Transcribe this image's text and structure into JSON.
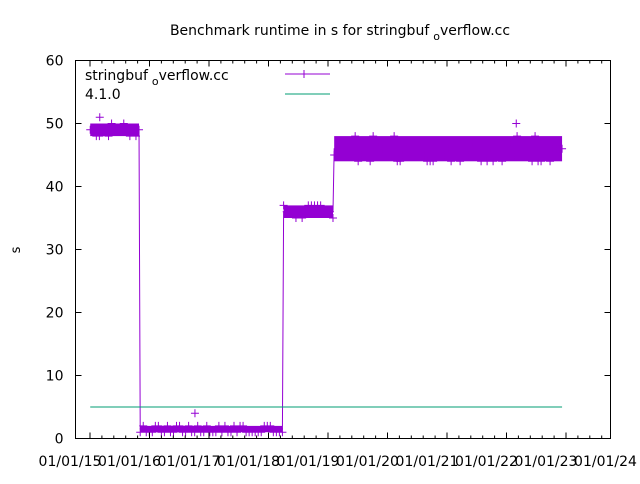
{
  "chart_data": {
    "type": "line",
    "title": "Benchmark runtime in s for stringbuf_overflow.cc",
    "title_parts": {
      "before": "Benchmark runtime in s for stringbuf",
      "subscript": "o",
      "after": "verflow.cc"
    },
    "xlabel": "",
    "ylabel": "s",
    "ylim": [
      0,
      60
    ],
    "yticks": [
      0,
      10,
      20,
      30,
      40,
      50,
      60
    ],
    "xlim_years": [
      2015,
      2024
    ],
    "xtick_labels": [
      "01/01/15",
      "01/01/16",
      "01/01/17",
      "01/01/18",
      "01/01/19",
      "01/01/20",
      "01/01/21",
      "01/01/22",
      "01/01/23",
      "01/01/24"
    ],
    "legend_position": "top-left",
    "series": [
      {
        "name": "stringbuf_overflow.cc",
        "name_parts": {
          "before": "stringbuf",
          "subscript": "o",
          "after": "verflow.cc"
        },
        "color": "#9400d3",
        "marker": "plus",
        "segments": [
          {
            "x_start": 2015.34,
            "x_end": 2016.16,
            "y_min": 48,
            "y_max": 50,
            "typical": 49
          },
          {
            "x_start": 2016.18,
            "x_end": 2018.57,
            "y_min": 1,
            "y_max": 2,
            "typical": 1.5
          },
          {
            "x_start": 2018.59,
            "x_end": 2019.42,
            "y_min": 35,
            "y_max": 37,
            "typical": 36
          },
          {
            "x_start": 2019.44,
            "x_end": 2023.27,
            "y_min": 44,
            "y_max": 48,
            "typical": 46
          }
        ],
        "outliers": [
          [
            2015.5,
            51
          ],
          [
            2017.1,
            4
          ],
          [
            2022.5,
            50
          ],
          [
            2020.5,
            44
          ]
        ]
      },
      {
        "name": "4.1.0",
        "color": "#009e73",
        "marker": "none",
        "points": [
          [
            2015.34,
            5
          ],
          [
            2023.27,
            5
          ]
        ]
      }
    ]
  }
}
